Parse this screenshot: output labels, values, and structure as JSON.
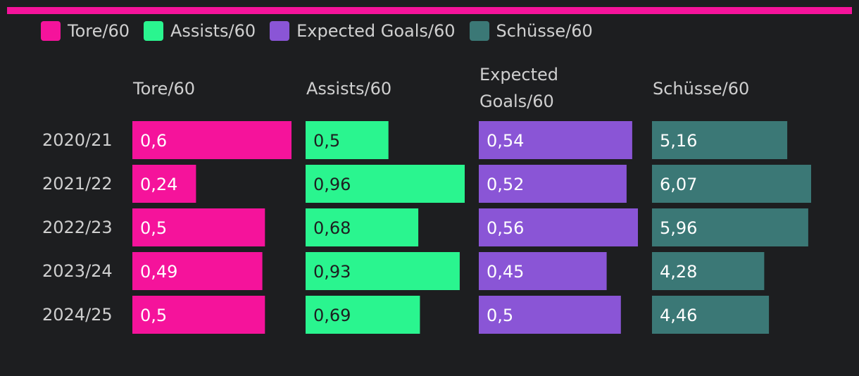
{
  "colors": {
    "background": "#1d1e20",
    "topbar": "#f5139b"
  },
  "legend": [
    {
      "label": "Tore/60",
      "color": "#f5139b"
    },
    {
      "label": "Assists/60",
      "color": "#2af58f"
    },
    {
      "label": "Expected Goals/60",
      "color": "#8a55d6"
    },
    {
      "label": "Schüsse/60",
      "color": "#3b7876"
    }
  ],
  "chart_data": {
    "type": "bar",
    "title": "",
    "categories": [
      "2020/21",
      "2021/22",
      "2022/23",
      "2023/24",
      "2024/25"
    ],
    "series": [
      {
        "name": "Tore/60",
        "header_lines": [
          "Tore/60"
        ],
        "color": "#f5139b",
        "text_color": "#ffffff",
        "values": [
          0.6,
          0.24,
          0.5,
          0.49,
          0.5
        ],
        "labels": [
          "0,6",
          "0,24",
          "0,5",
          "0,49",
          "0,5"
        ]
      },
      {
        "name": "Assists/60",
        "header_lines": [
          "Assists/60"
        ],
        "color": "#2af58f",
        "text_color": "#1d1e20",
        "values": [
          0.5,
          0.96,
          0.68,
          0.93,
          0.69
        ],
        "labels": [
          "0,5",
          "0,96",
          "0,68",
          "0,93",
          "0,69"
        ]
      },
      {
        "name": "Expected Goals/60",
        "header_lines": [
          "Expected",
          "Goals/60"
        ],
        "color": "#8a55d6",
        "text_color": "#ffffff",
        "values": [
          0.54,
          0.52,
          0.56,
          0.45,
          0.5
        ],
        "labels": [
          "0,54",
          "0,52",
          "0,56",
          "0,45",
          "0,5"
        ]
      },
      {
        "name": "Schüsse/60",
        "header_lines": [
          "Schüsse/60"
        ],
        "color": "#3b7876",
        "text_color": "#ffffff",
        "values": [
          5.16,
          6.07,
          5.96,
          4.28,
          4.46
        ],
        "labels": [
          "5,16",
          "6,07",
          "5,96",
          "4,28",
          "4,46"
        ]
      }
    ],
    "grid": false,
    "legend_position": "top-left"
  }
}
